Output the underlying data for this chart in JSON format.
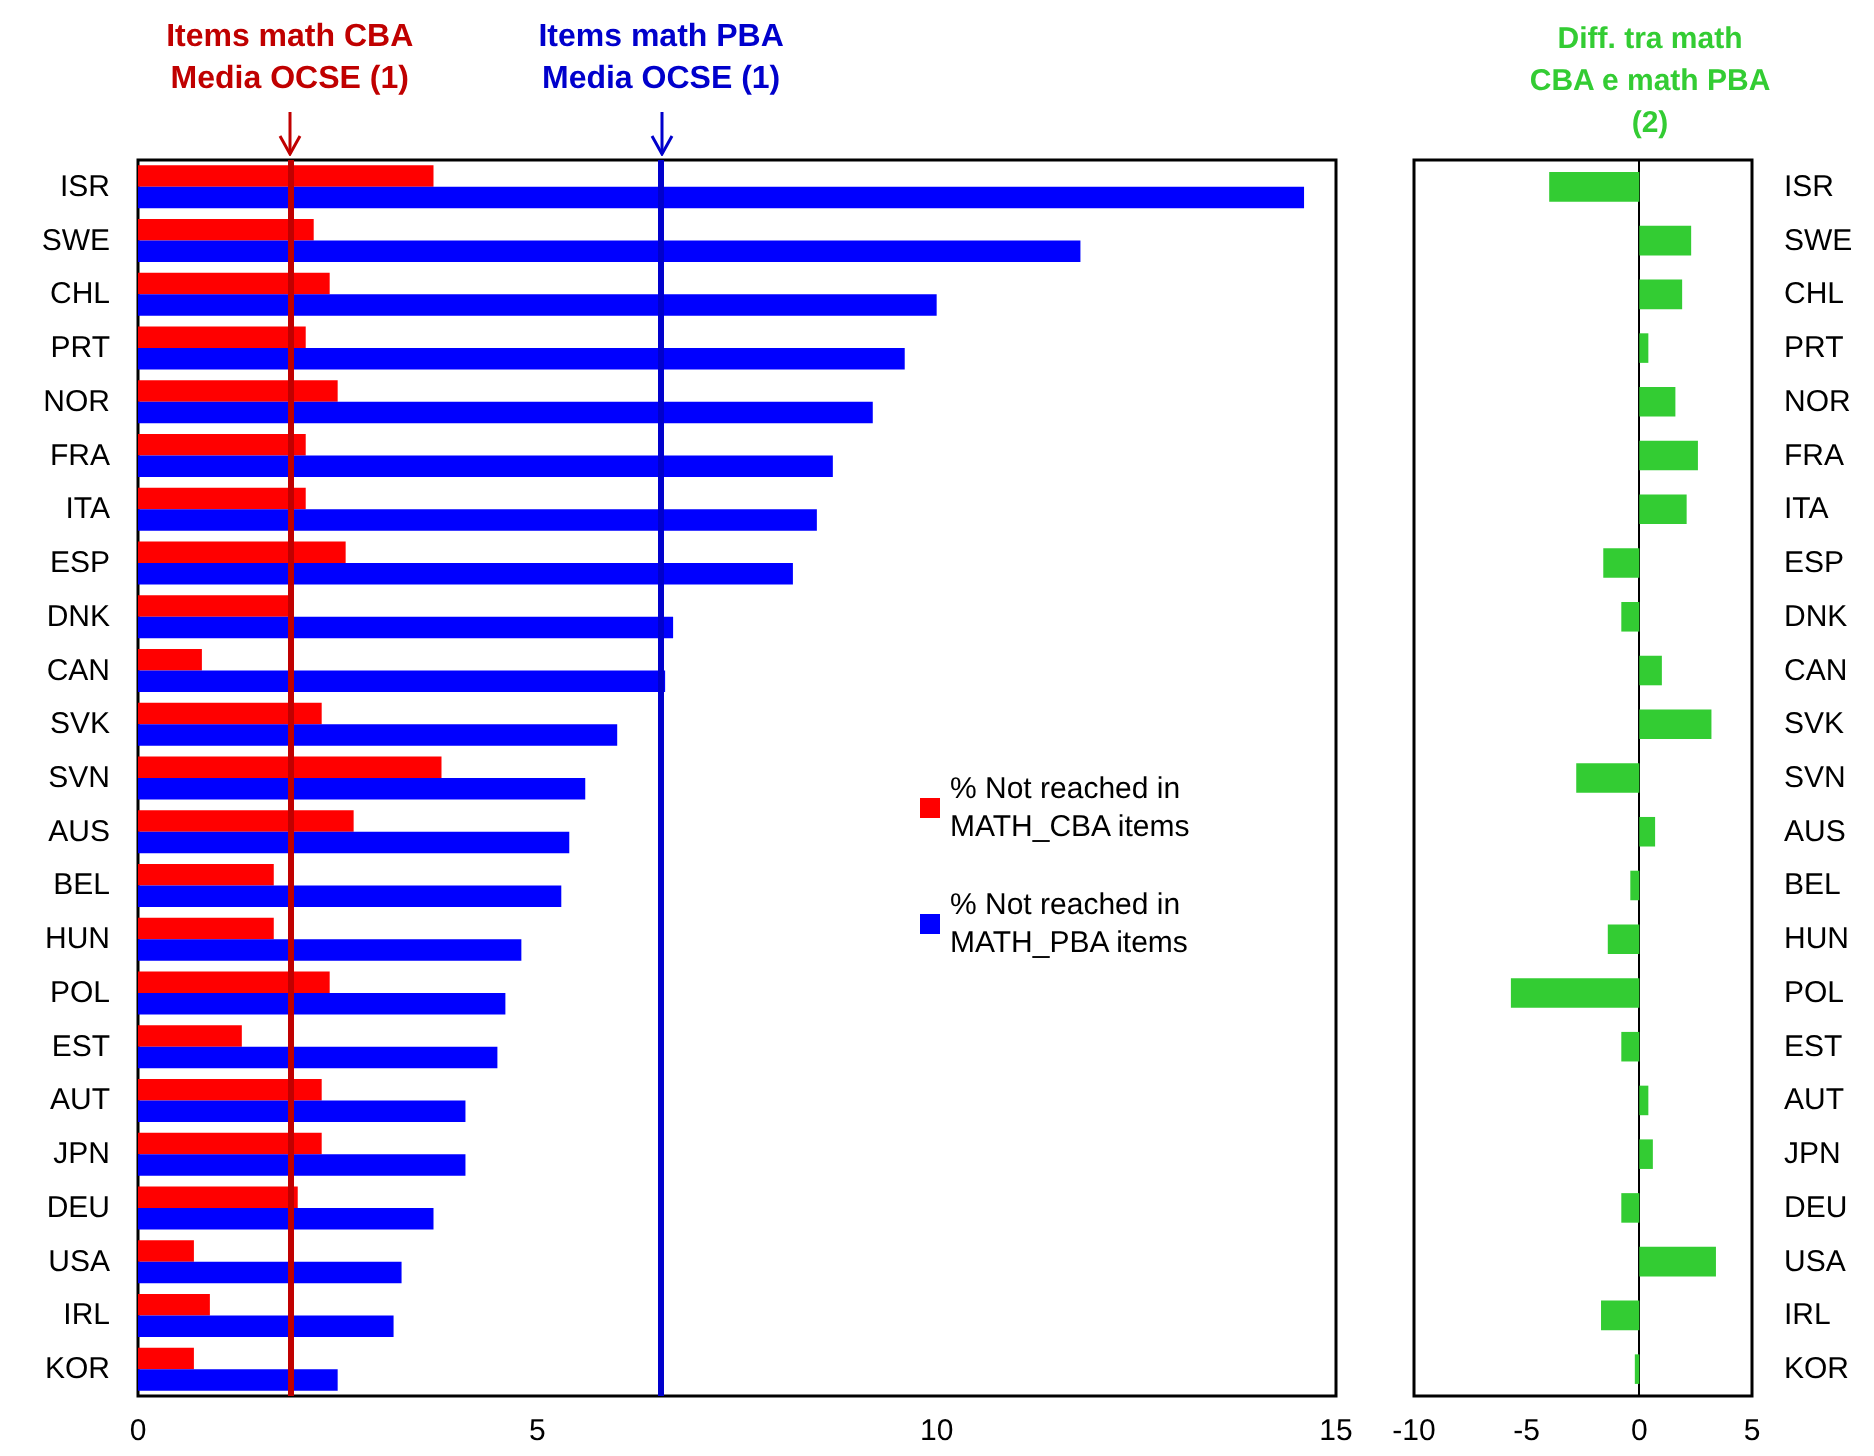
{
  "chart_data": [
    {
      "type": "bar",
      "orientation": "horizontal",
      "categories": [
        "ISR",
        "SWE",
        "CHL",
        "PRT",
        "NOR",
        "FRA",
        "ITA",
        "ESP",
        "DNK",
        "CAN",
        "SVK",
        "SVN",
        "AUS",
        "BEL",
        "HUN",
        "POL",
        "EST",
        "AUT",
        "JPN",
        "DEU",
        "USA",
        "IRL",
        "KOR"
      ],
      "series": [
        {
          "name": "% Not reached in MATH_CBA items",
          "color": "#ff0000",
          "values": [
            3.7,
            2.2,
            2.4,
            2.1,
            2.5,
            2.1,
            2.1,
            2.6,
            1.9,
            0.8,
            2.3,
            3.8,
            2.7,
            1.7,
            1.7,
            2.4,
            1.3,
            2.3,
            2.3,
            2.0,
            0.7,
            0.9,
            0.7
          ]
        },
        {
          "name": "% Not reached in MATH_PBA items",
          "color": "#0000ff",
          "values": [
            14.6,
            11.8,
            10.0,
            9.6,
            9.2,
            8.7,
            8.5,
            8.2,
            6.7,
            6.6,
            6.0,
            5.6,
            5.4,
            5.3,
            4.8,
            4.6,
            4.5,
            4.1,
            4.1,
            3.7,
            3.3,
            3.2,
            2.5
          ]
        }
      ],
      "xlim": [
        0,
        15
      ],
      "xticks": [
        0,
        5,
        10,
        15
      ],
      "legend": "right",
      "ref_lines": [
        {
          "axis": "x",
          "value": 1.9,
          "label": "Items math CBA\nMedia OCSE (1)",
          "color": "#c00000"
        },
        {
          "axis": "x",
          "value": 6.55,
          "label": "Items math PBA\nMedia OCSE (1)",
          "color": "#0000cc"
        }
      ]
    },
    {
      "type": "bar",
      "orientation": "horizontal",
      "title": "Diff. tra math\nCBA e math PBA\n(2)",
      "categories": [
        "ISR",
        "SWE",
        "CHL",
        "PRT",
        "NOR",
        "FRA",
        "ITA",
        "ESP",
        "DNK",
        "CAN",
        "SVK",
        "SVN",
        "AUS",
        "BEL",
        "HUN",
        "POL",
        "EST",
        "AUT",
        "JPN",
        "DEU",
        "USA",
        "IRL",
        "KOR"
      ],
      "color": "#33cc33",
      "values": [
        -4.0,
        2.3,
        1.9,
        0.4,
        1.6,
        2.6,
        2.1,
        -1.6,
        -0.8,
        1.0,
        3.2,
        -2.8,
        0.7,
        -0.4,
        -1.4,
        -5.7,
        -0.8,
        0.4,
        0.6,
        -0.8,
        3.4,
        -1.7,
        -0.2
      ],
      "xlim": [
        -10,
        5
      ],
      "xticks": [
        -10,
        -5,
        0,
        5
      ]
    }
  ]
}
